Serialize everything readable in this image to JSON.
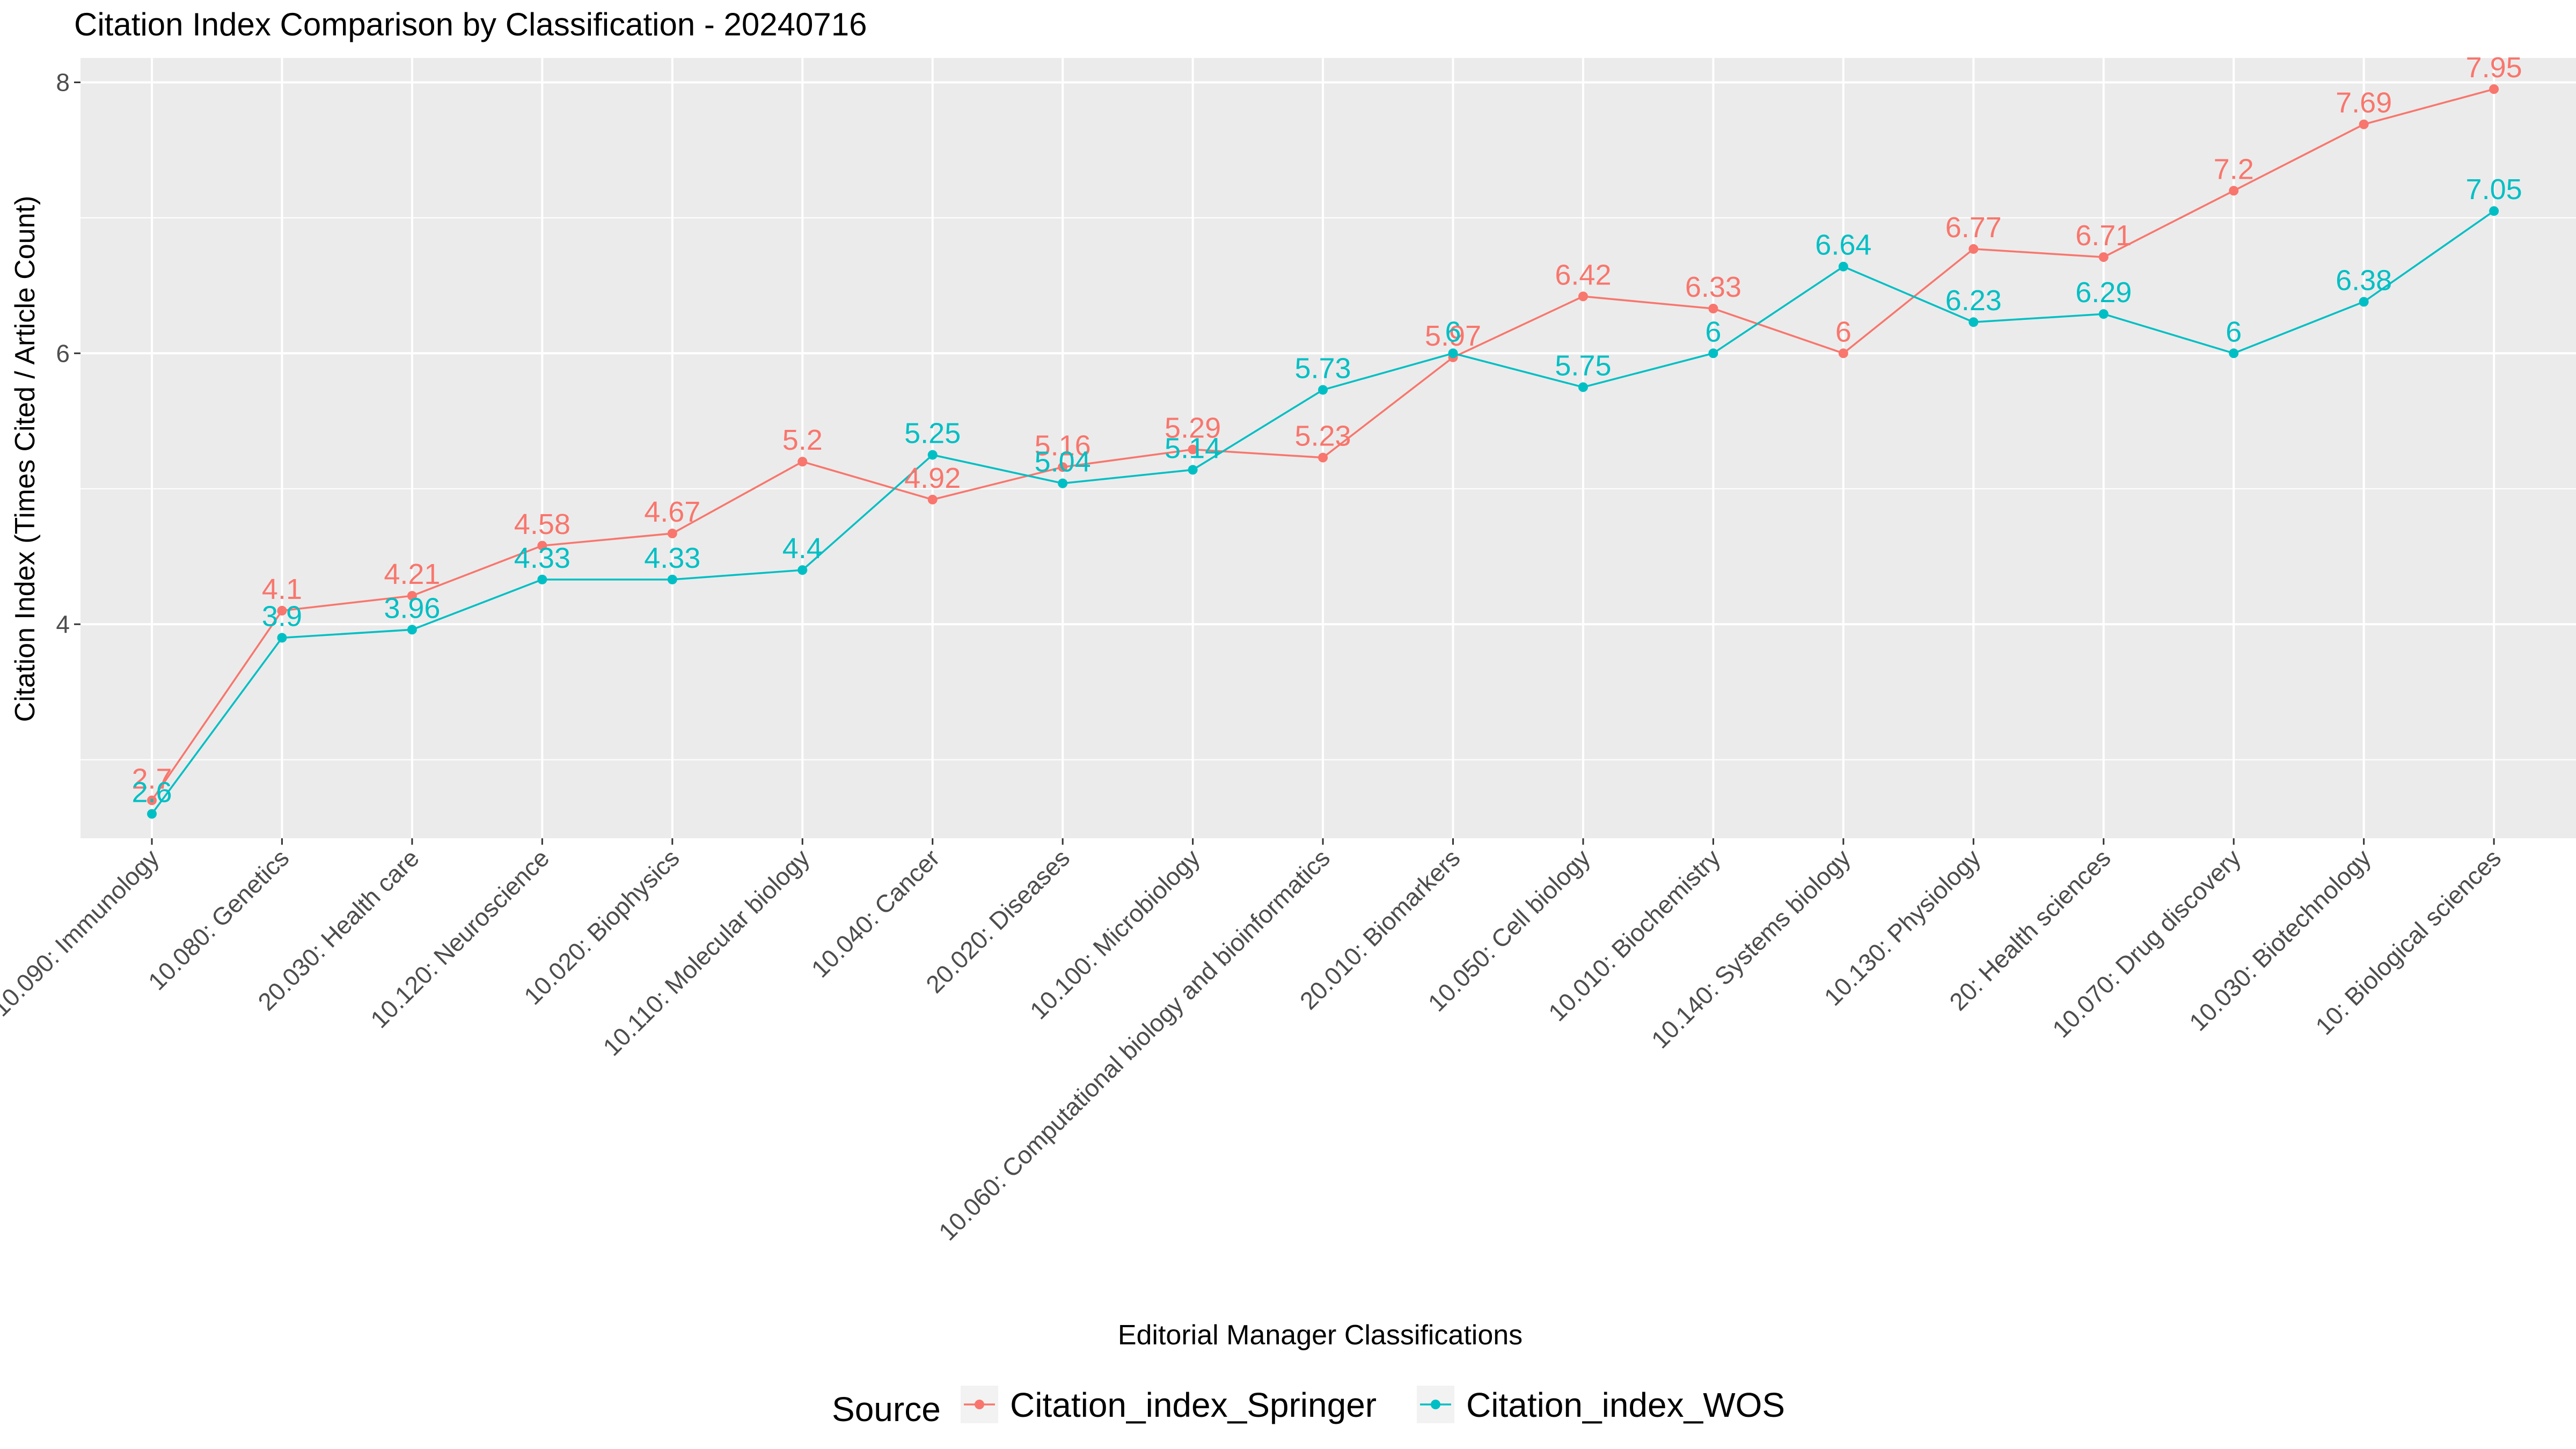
{
  "chart_data": {
    "type": "line",
    "title": "Citation Index Comparison by Classification - 20240716",
    "xlabel": "Editorial Manager Classifications",
    "ylabel": "Citation Index (Times Cited / Article Count)",
    "ylim": [
      2.42,
      8.18
    ],
    "yticks": [
      4,
      6,
      8
    ],
    "grid": true,
    "legend": {
      "title": "Source",
      "position": "bottom"
    },
    "categories": [
      "10.090: Immunology",
      "10.080: Genetics",
      "20.030: Health care",
      "10.120: Neuroscience",
      "10.020: Biophysics",
      "10.110: Molecular biology",
      "10.040: Cancer",
      "20.020: Diseases",
      "10.100: Microbiology",
      "10.060: Computational biology and bioinformatics",
      "20.010: Biomarkers",
      "10.050: Cell biology",
      "10.010: Biochemistry",
      "10.140: Systems biology",
      "10.130: Physiology",
      "20: Health sciences",
      "10.070: Drug discovery",
      "10.030: Biotechnology",
      "10: Biological sciences"
    ],
    "series": [
      {
        "name": "Citation_index_Springer",
        "color": "#F8766D",
        "values": [
          2.7,
          4.1,
          4.21,
          4.58,
          4.67,
          5.2,
          4.92,
          5.16,
          5.29,
          5.23,
          5.97,
          6.42,
          6.33,
          6,
          6.77,
          6.71,
          7.2,
          7.69,
          7.95
        ]
      },
      {
        "name": "Citation_index_WOS",
        "color": "#00BFC4",
        "values": [
          2.6,
          3.9,
          3.96,
          4.33,
          4.33,
          4.4,
          5.25,
          5.04,
          5.14,
          5.73,
          6,
          5.75,
          6,
          6.64,
          6.23,
          6.29,
          6,
          6.38,
          7.05
        ]
      }
    ]
  }
}
